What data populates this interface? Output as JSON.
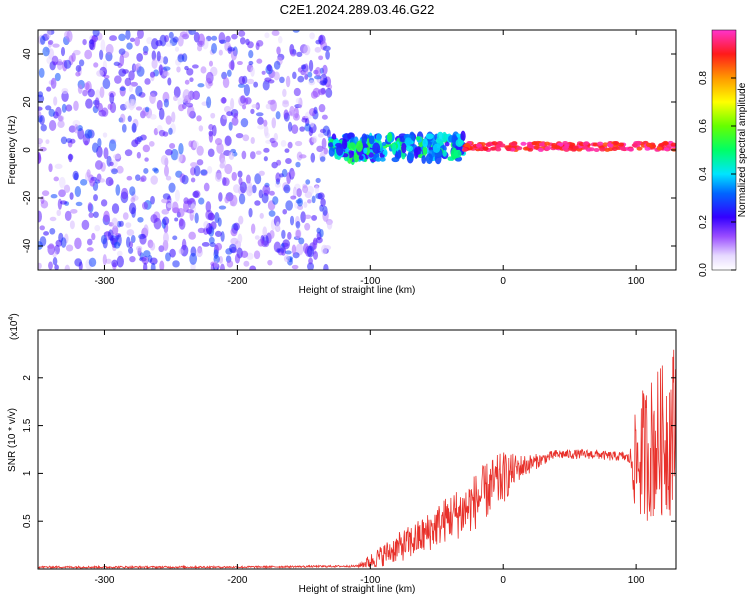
{
  "title": "C2E1.2024.289.03.46.G22",
  "chart_data": [
    {
      "type": "heatmap",
      "xlabel": "Height of straight line (km)",
      "ylabel": "Frequency (Hz)",
      "xlim": [
        -350,
        130
      ],
      "ylim": [
        -50,
        50
      ],
      "xticks": [
        -300,
        -200,
        -100,
        0,
        100
      ],
      "yticks": [
        -40,
        -20,
        0,
        20,
        40
      ],
      "colorbar": {
        "label": "Normalized spectral amplitude",
        "range": [
          0,
          1
        ],
        "ticks": [
          0.0,
          0.2,
          0.4,
          0.6,
          0.8
        ],
        "colormap": "white-purple-blue-cyan-green-yellow-orange-red-magenta"
      },
      "regions": [
        {
          "x_range": [
            -350,
            -130
          ],
          "y_range": [
            -50,
            50
          ],
          "amplitude": [
            0.05,
            0.3
          ],
          "pattern": "scattered noise"
        },
        {
          "x_range": [
            -130,
            -30
          ],
          "center_y": 1,
          "half_width": 5,
          "amplitude": [
            0.2,
            0.55
          ],
          "pattern": "broad band"
        },
        {
          "x_range": [
            -30,
            130
          ],
          "center_y": 1.5,
          "half_width": 1.5,
          "amplitude": [
            0.85,
            1.0
          ],
          "pattern": "narrow line"
        }
      ],
      "colors": {
        "noise": "#7a2cf0",
        "band": "#00d8ff",
        "line": "#ff2b2b"
      }
    },
    {
      "type": "line",
      "xlabel": "Height of straight line (km)",
      "ylabel": "SNR (10 * v/v)",
      "y_multiplier": "(x10",
      "y_multiplier_exp": "4",
      "xlim": [
        -350,
        130
      ],
      "ylim": [
        0,
        2.5
      ],
      "xticks": [
        -300,
        -200,
        -100,
        0,
        100
      ],
      "yticks": [
        0.5,
        1.0,
        1.5,
        2.0
      ],
      "series": [
        {
          "color": "#e8312b",
          "x": [
            -350,
            -300,
            -200,
            -110,
            -100,
            -90,
            -80,
            -70,
            -60,
            -50,
            -40,
            -30,
            -20,
            -10,
            0,
            10,
            20,
            30,
            40,
            50,
            60,
            70,
            80,
            90,
            95,
            100,
            105,
            110,
            115,
            120,
            125,
            130
          ],
          "y": [
            0.02,
            0.02,
            0.02,
            0.03,
            0.08,
            0.15,
            0.22,
            0.28,
            0.35,
            0.45,
            0.55,
            0.6,
            0.72,
            0.85,
            0.95,
            1.05,
            1.1,
            1.15,
            1.2,
            1.2,
            1.2,
            1.2,
            1.18,
            1.18,
            1.15,
            1.1,
            1.2,
            1.25,
            1.3,
            1.35,
            1.4,
            1.5
          ],
          "noise_amplitude": [
            0.01,
            0.01,
            0.01,
            0.01,
            0.08,
            0.12,
            0.15,
            0.18,
            0.2,
            0.22,
            0.25,
            0.28,
            0.3,
            0.3,
            0.28,
            0.15,
            0.1,
            0.06,
            0.05,
            0.05,
            0.05,
            0.05,
            0.05,
            0.05,
            0.06,
            0.6,
            0.7,
            0.75,
            0.8,
            0.8,
            0.85,
            0.95
          ]
        }
      ]
    }
  ]
}
